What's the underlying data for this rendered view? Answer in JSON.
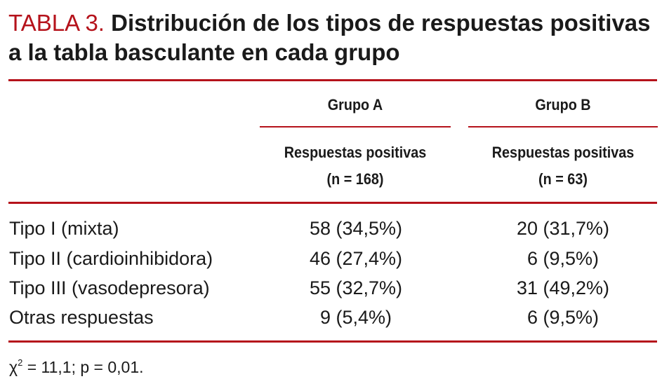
{
  "title": {
    "label": "TABLA 3.",
    "text": "Distribución de los tipos de respuestas positivas a la tabla basculante en cada grupo"
  },
  "table": {
    "groups": [
      {
        "name": "Grupo A",
        "subheader_line1": "Respuestas positivas",
        "subheader_line2": "(n = 168)"
      },
      {
        "name": "Grupo B",
        "subheader_line1": "Respuestas positivas",
        "subheader_line2": "(n = 63)"
      }
    ],
    "rows": [
      {
        "label": "Tipo I (mixta)",
        "group_a": "58 (34,5%)",
        "group_b": "20 (31,7%)"
      },
      {
        "label": "Tipo II (cardioinhibidora)",
        "group_a": "46 (27,4%)",
        "group_b": "6 (9,5%)"
      },
      {
        "label": "Tipo III (vasodepresora)",
        "group_a": "55 (32,7%)",
        "group_b": "31 (49,2%)"
      },
      {
        "label": "Otras respuestas",
        "group_a": "9 (5,4%)",
        "group_b": "6 (9,5%)"
      }
    ]
  },
  "footnote": {
    "symbol": "χ",
    "superscript": "2",
    "text": " = 11,1; p = 0,01."
  },
  "colors": {
    "accent": "#b5121b",
    "text": "#1a1a1a"
  }
}
